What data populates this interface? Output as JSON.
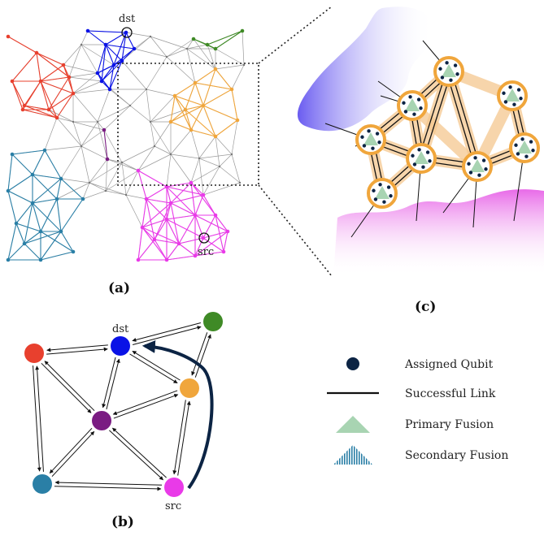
{
  "panel_a": {
    "caption": "(a)",
    "dst_label": "dst",
    "src_label": "src"
  },
  "panel_b": {
    "caption": "(b)",
    "dst_label": "dst",
    "src_label": "src",
    "nodes": [
      {
        "id": "red",
        "color": "#e8402e"
      },
      {
        "id": "dst",
        "color": "#0a12e6"
      },
      {
        "id": "green",
        "color": "#3f8a26"
      },
      {
        "id": "orange",
        "color": "#f0a63c"
      },
      {
        "id": "purple",
        "color": "#7a1c82"
      },
      {
        "id": "teal",
        "color": "#2a7fa6"
      },
      {
        "id": "src",
        "color": "#e93ae8"
      }
    ]
  },
  "panel_c": {
    "caption": "(c)"
  },
  "legend": {
    "items": [
      {
        "label": "Assigned Qubit",
        "icon": "qubit-dot"
      },
      {
        "label": "Successful Link",
        "icon": "line"
      },
      {
        "label": "Primary Fusion",
        "icon": "triangle"
      },
      {
        "label": "Secondary Fusion",
        "icon": "hatched-triangle"
      }
    ]
  },
  "colors": {
    "red": "#e8402e",
    "blue": "#0a12e6",
    "green": "#3f8a26",
    "orange": "#f0a63c",
    "purple": "#7a1c82",
    "teal": "#2a7fa6",
    "magenta": "#e93ae8",
    "grey": "#9a9a9a",
    "navy": "#0c2444"
  }
}
